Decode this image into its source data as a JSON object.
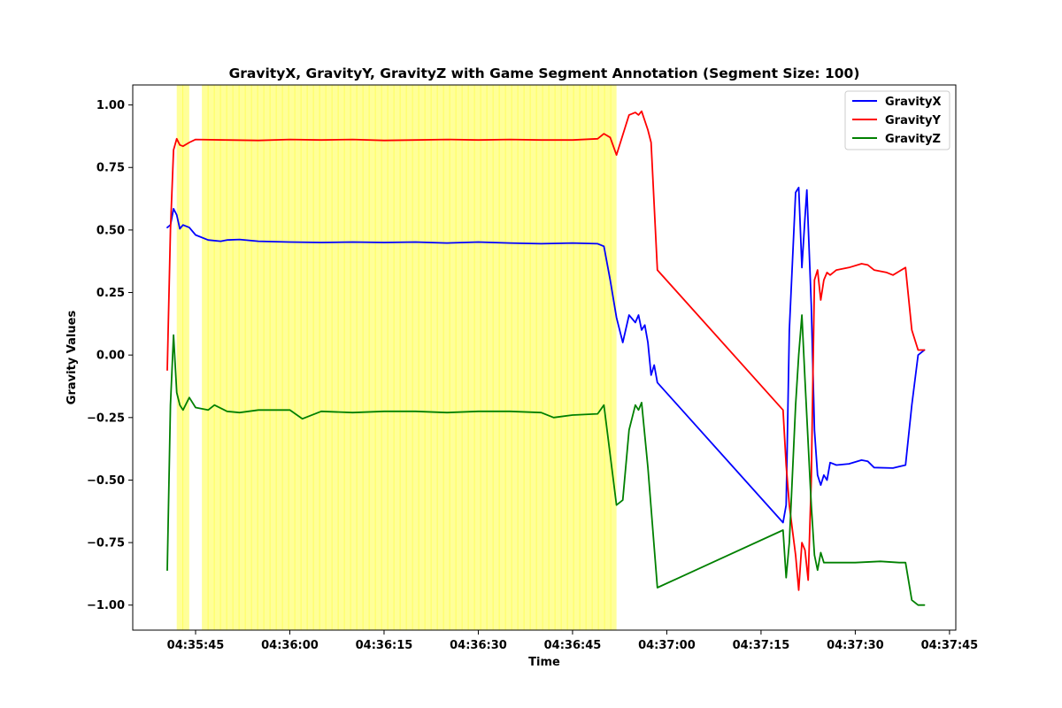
{
  "chart_data": {
    "type": "line",
    "title": "GravityX, GravityY, GravityZ with Game Segment Annotation (Segment Size: 100)",
    "xlabel": "Time",
    "ylabel": "Gravity Values",
    "x_unit": "time of day (hh:mm:ss)",
    "xlim": [
      "04:35:35",
      "04:37:46"
    ],
    "ylim": [
      -1.1,
      1.08
    ],
    "x_ticks": [
      "04:35:45",
      "04:36:00",
      "04:36:15",
      "04:36:30",
      "04:36:45",
      "04:37:00",
      "04:37:15",
      "04:37:30",
      "04:37:45"
    ],
    "y_ticks": [
      1.0,
      0.75,
      0.5,
      0.25,
      0.0,
      -0.25,
      -0.5,
      -0.75,
      -1.0
    ],
    "y_tick_labels": [
      "1.00",
      "0.75",
      "0.50",
      "0.25",
      "0.00",
      "−0.25",
      "−0.50",
      "−0.75",
      "−1.00"
    ],
    "grid": false,
    "legend": "top-right",
    "highlight_color": "#ffff99",
    "highlight_regions": [
      [
        "04:35:42",
        "04:35:44"
      ],
      [
        "04:35:46",
        "04:36:52"
      ]
    ],
    "series": [
      {
        "name": "GravityX",
        "color": "#0000ff",
        "points": [
          [
            "04:35:40.5",
            0.51
          ],
          [
            "04:35:41",
            0.52
          ],
          [
            "04:35:41.5",
            0.585
          ],
          [
            "04:35:42",
            0.56
          ],
          [
            "04:35:42.5",
            0.505
          ],
          [
            "04:35:43",
            0.52
          ],
          [
            "04:35:44",
            0.51
          ],
          [
            "04:35:45",
            0.48
          ],
          [
            "04:35:47",
            0.46
          ],
          [
            "04:35:49",
            0.455
          ],
          [
            "04:35:50",
            0.46
          ],
          [
            "04:35:52",
            0.462
          ],
          [
            "04:35:55",
            0.455
          ],
          [
            "04:36:00",
            0.452
          ],
          [
            "04:36:05",
            0.45
          ],
          [
            "04:36:10",
            0.452
          ],
          [
            "04:36:15",
            0.45
          ],
          [
            "04:36:20",
            0.452
          ],
          [
            "04:36:25",
            0.448
          ],
          [
            "04:36:30",
            0.452
          ],
          [
            "04:36:35",
            0.448
          ],
          [
            "04:36:40",
            0.445
          ],
          [
            "04:36:45",
            0.448
          ],
          [
            "04:36:49",
            0.445
          ],
          [
            "04:36:50",
            0.435
          ],
          [
            "04:36:51",
            0.3
          ],
          [
            "04:36:52",
            0.15
          ],
          [
            "04:36:53",
            0.05
          ],
          [
            "04:36:54",
            0.16
          ],
          [
            "04:36:55",
            0.13
          ],
          [
            "04:36:55.5",
            0.16
          ],
          [
            "04:36:56",
            0.1
          ],
          [
            "04:36:56.5",
            0.12
          ],
          [
            "04:36:57",
            0.05
          ],
          [
            "04:36:57.5",
            -0.08
          ],
          [
            "04:36:58",
            -0.04
          ],
          [
            "04:36:58.5",
            -0.11
          ],
          [
            "04:37:18.5",
            -0.67
          ],
          [
            "04:37:19",
            -0.6
          ],
          [
            "04:37:19.5",
            0.1
          ],
          [
            "04:37:20.5",
            0.65
          ],
          [
            "04:37:21",
            0.67
          ],
          [
            "04:37:21.5",
            0.35
          ],
          [
            "04:37:22",
            0.55
          ],
          [
            "04:37:22.3",
            0.66
          ],
          [
            "04:37:23",
            0.2
          ],
          [
            "04:37:23.5",
            -0.3
          ],
          [
            "04:37:24",
            -0.48
          ],
          [
            "04:37:24.5",
            -0.52
          ],
          [
            "04:37:25",
            -0.48
          ],
          [
            "04:37:25.5",
            -0.5
          ],
          [
            "04:37:26",
            -0.43
          ],
          [
            "04:37:27",
            -0.44
          ],
          [
            "04:37:29",
            -0.435
          ],
          [
            "04:37:31",
            -0.42
          ],
          [
            "04:37:32",
            -0.425
          ],
          [
            "04:37:33",
            -0.45
          ],
          [
            "04:37:36",
            -0.452
          ],
          [
            "04:37:38",
            -0.44
          ],
          [
            "04:37:39",
            -0.2
          ],
          [
            "04:37:40",
            0.0
          ],
          [
            "04:37:41",
            0.02
          ]
        ]
      },
      {
        "name": "GravityY",
        "color": "#ff0000",
        "points": [
          [
            "04:35:40.5",
            -0.06
          ],
          [
            "04:35:41",
            0.5
          ],
          [
            "04:35:41.5",
            0.82
          ],
          [
            "04:35:42",
            0.865
          ],
          [
            "04:35:42.5",
            0.84
          ],
          [
            "04:35:43",
            0.835
          ],
          [
            "04:35:44",
            0.85
          ],
          [
            "04:35:45",
            0.862
          ],
          [
            "04:35:50",
            0.86
          ],
          [
            "04:35:55",
            0.858
          ],
          [
            "04:36:00",
            0.862
          ],
          [
            "04:36:05",
            0.86
          ],
          [
            "04:36:10",
            0.862
          ],
          [
            "04:36:15",
            0.858
          ],
          [
            "04:36:20",
            0.86
          ],
          [
            "04:36:25",
            0.862
          ],
          [
            "04:36:30",
            0.86
          ],
          [
            "04:36:35",
            0.862
          ],
          [
            "04:36:40",
            0.86
          ],
          [
            "04:36:45",
            0.86
          ],
          [
            "04:36:49",
            0.865
          ],
          [
            "04:36:50",
            0.885
          ],
          [
            "04:36:51",
            0.87
          ],
          [
            "04:36:52",
            0.8
          ],
          [
            "04:36:53",
            0.88
          ],
          [
            "04:36:54",
            0.96
          ],
          [
            "04:36:55",
            0.97
          ],
          [
            "04:36:55.5",
            0.96
          ],
          [
            "04:36:56",
            0.975
          ],
          [
            "04:36:57",
            0.9
          ],
          [
            "04:36:57.5",
            0.85
          ],
          [
            "04:36:58.5",
            0.34
          ],
          [
            "04:37:18.5",
            -0.22
          ],
          [
            "04:37:19",
            -0.44
          ],
          [
            "04:37:19.5",
            -0.6
          ],
          [
            "04:37:20",
            -0.7
          ],
          [
            "04:37:20.5",
            -0.8
          ],
          [
            "04:37:21",
            -0.94
          ],
          [
            "04:37:21.5",
            -0.75
          ],
          [
            "04:37:22",
            -0.78
          ],
          [
            "04:37:22.5",
            -0.9
          ],
          [
            "04:37:23",
            -0.5
          ],
          [
            "04:37:23.5",
            0.3
          ],
          [
            "04:37:24",
            0.34
          ],
          [
            "04:37:24.5",
            0.22
          ],
          [
            "04:37:25",
            0.3
          ],
          [
            "04:37:25.5",
            0.33
          ],
          [
            "04:37:26",
            0.32
          ],
          [
            "04:37:27",
            0.34
          ],
          [
            "04:37:29",
            0.35
          ],
          [
            "04:37:31",
            0.365
          ],
          [
            "04:37:32",
            0.36
          ],
          [
            "04:37:33",
            0.34
          ],
          [
            "04:37:35",
            0.33
          ],
          [
            "04:37:36",
            0.32
          ],
          [
            "04:37:38",
            0.35
          ],
          [
            "04:37:39",
            0.1
          ],
          [
            "04:37:40",
            0.02
          ],
          [
            "04:37:41",
            0.02
          ]
        ]
      },
      {
        "name": "GravityZ",
        "color": "#008000",
        "points": [
          [
            "04:35:40.5",
            -0.86
          ],
          [
            "04:35:41",
            -0.2
          ],
          [
            "04:35:41.5",
            0.08
          ],
          [
            "04:35:42",
            -0.15
          ],
          [
            "04:35:42.5",
            -0.2
          ],
          [
            "04:35:43",
            -0.22
          ],
          [
            "04:35:44",
            -0.17
          ],
          [
            "04:35:45",
            -0.21
          ],
          [
            "04:35:47",
            -0.22
          ],
          [
            "04:35:48",
            -0.2
          ],
          [
            "04:35:50",
            -0.225
          ],
          [
            "04:35:52",
            -0.23
          ],
          [
            "04:35:55",
            -0.22
          ],
          [
            "04:36:00",
            -0.22
          ],
          [
            "04:36:02",
            -0.255
          ],
          [
            "04:36:05",
            -0.225
          ],
          [
            "04:36:10",
            -0.23
          ],
          [
            "04:36:15",
            -0.225
          ],
          [
            "04:36:20",
            -0.225
          ],
          [
            "04:36:25",
            -0.23
          ],
          [
            "04:36:30",
            -0.225
          ],
          [
            "04:36:35",
            -0.225
          ],
          [
            "04:36:40",
            -0.23
          ],
          [
            "04:36:42",
            -0.25
          ],
          [
            "04:36:45",
            -0.24
          ],
          [
            "04:36:49",
            -0.235
          ],
          [
            "04:36:50",
            -0.2
          ],
          [
            "04:36:51",
            -0.4
          ],
          [
            "04:36:52",
            -0.6
          ],
          [
            "04:36:53",
            -0.58
          ],
          [
            "04:36:54",
            -0.3
          ],
          [
            "04:36:55",
            -0.2
          ],
          [
            "04:36:55.5",
            -0.22
          ],
          [
            "04:36:56",
            -0.19
          ],
          [
            "04:36:57",
            -0.45
          ],
          [
            "04:36:58.5",
            -0.93
          ],
          [
            "04:37:18.5",
            -0.7
          ],
          [
            "04:37:19",
            -0.89
          ],
          [
            "04:37:19.5",
            -0.75
          ],
          [
            "04:37:20.5",
            -0.2
          ],
          [
            "04:37:21",
            0.0
          ],
          [
            "04:37:21.5",
            0.16
          ],
          [
            "04:37:22",
            -0.1
          ],
          [
            "04:37:23",
            -0.6
          ],
          [
            "04:37:23.5",
            -0.8
          ],
          [
            "04:37:24",
            -0.86
          ],
          [
            "04:37:24.5",
            -0.79
          ],
          [
            "04:37:25",
            -0.83
          ],
          [
            "04:37:27",
            -0.83
          ],
          [
            "04:37:30",
            -0.83
          ],
          [
            "04:37:34",
            -0.825
          ],
          [
            "04:37:37",
            -0.83
          ],
          [
            "04:37:38",
            -0.83
          ],
          [
            "04:37:39",
            -0.98
          ],
          [
            "04:37:40",
            -1.0
          ],
          [
            "04:37:41",
            -1.0
          ]
        ]
      }
    ]
  }
}
